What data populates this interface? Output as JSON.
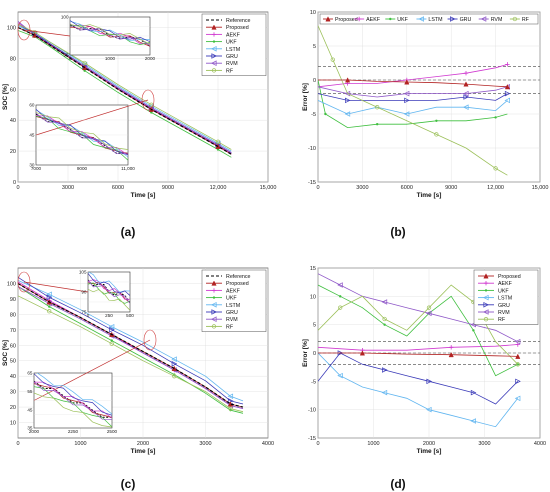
{
  "colors": {
    "Reference": "#000000",
    "Proposed": "#b22222",
    "AEKF": "#d03ad0",
    "UKF": "#3fbf3f",
    "LSTM": "#62b6f0",
    "GRU": "#3a3ab8",
    "RVM": "#8f58c8",
    "RF": "#9cc05a"
  },
  "chart_data": [
    {
      "panel": "a",
      "label": "(a)",
      "type": "line",
      "xlabel": "Time [s]",
      "ylabel": "SOC [%]",
      "xlim": [
        0,
        15000
      ],
      "ylim": [
        0,
        110
      ],
      "xticks": [
        0,
        3000,
        6000,
        9000,
        12000,
        15000
      ],
      "xticklabels": [
        "0",
        "3000",
        "6000",
        "9000",
        "12,000",
        "15,000"
      ],
      "yticks": [
        0,
        20,
        40,
        60,
        80,
        100
      ],
      "yticklabels": [
        "0",
        "20",
        "40",
        "60",
        "80",
        "100"
      ],
      "grid": true,
      "legend_position": "top-right",
      "legend": [
        "Reference",
        "Proposed",
        "AEKF",
        "UKF",
        "LSTM",
        "GRU",
        "RVM",
        "RF"
      ],
      "series": [
        {
          "name": "Reference",
          "x": [
            0,
            1000,
            2000,
            4000,
            6000,
            8000,
            10000,
            12000,
            12800
          ],
          "y": [
            100,
            95,
            88,
            74,
            60,
            47,
            35,
            23,
            18
          ]
        },
        {
          "name": "Proposed",
          "x": [
            0,
            1000,
            2000,
            4000,
            6000,
            8000,
            10000,
            12000,
            12800
          ],
          "y": [
            100,
            95,
            88,
            74,
            60,
            47,
            35,
            23,
            18
          ]
        },
        {
          "name": "AEKF",
          "x": [
            0,
            1000,
            2000,
            4000,
            6000,
            8000,
            10000,
            12000,
            12800
          ],
          "y": [
            103,
            95.5,
            88.5,
            74.5,
            60.5,
            47.5,
            35.5,
            23.5,
            18.5
          ]
        },
        {
          "name": "UKF",
          "x": [
            0,
            1000,
            2000,
            4000,
            6000,
            8000,
            10000,
            12000,
            12800
          ],
          "y": [
            98,
            94,
            87,
            72,
            58,
            45,
            33,
            21,
            16
          ]
        },
        {
          "name": "LSTM",
          "x": [
            0,
            1000,
            2000,
            4000,
            6000,
            8000,
            10000,
            12000,
            12800
          ],
          "y": [
            101,
            96,
            90,
            76,
            62,
            49,
            37,
            25,
            20
          ]
        },
        {
          "name": "GRU",
          "x": [
            0,
            1000,
            2000,
            4000,
            6000,
            8000,
            10000,
            12000,
            12800
          ],
          "y": [
            102,
            96,
            89,
            75,
            61,
            48,
            36,
            24,
            19
          ]
        },
        {
          "name": "RVM",
          "x": [
            0,
            1000,
            2000,
            4000,
            6000,
            8000,
            10000,
            12000,
            12800
          ],
          "y": [
            104,
            95,
            88,
            75,
            61,
            48,
            36,
            24,
            19
          ]
        },
        {
          "name": "RF",
          "x": [
            0,
            1000,
            2000,
            4000,
            6000,
            8000,
            10000,
            12000,
            12800
          ],
          "y": [
            102,
            97,
            90,
            77,
            63,
            50,
            38,
            26,
            21
          ]
        }
      ],
      "insets": [
        {
          "xticklabels": [
            "0",
            "1000",
            "2000"
          ],
          "yticklabels": [
            "95",
            "100"
          ]
        },
        {
          "xticklabels": [
            "7000",
            "9000",
            "11,000"
          ],
          "yticklabels": [
            "30",
            "45",
            "60"
          ]
        }
      ]
    },
    {
      "panel": "b",
      "label": "(b)",
      "type": "line",
      "xlabel": "Time [s]",
      "ylabel": "Error [%]",
      "xlim": [
        0,
        15000
      ],
      "ylim": [
        -15,
        10
      ],
      "xticks": [
        0,
        3000,
        6000,
        9000,
        12000,
        15000
      ],
      "xticklabels": [
        "0",
        "3000",
        "6000",
        "9000",
        "12,000",
        "15,000"
      ],
      "yticks": [
        10,
        5,
        0,
        -5,
        -10,
        -15
      ],
      "yticklabels": [
        "10",
        "5",
        "0",
        "-5",
        "-10",
        "-15"
      ],
      "grid": true,
      "legend_position": "top",
      "legend": [
        "Proposed",
        "AEKF",
        "UKF",
        "LSTM",
        "GRU",
        "RVM",
        "RF"
      ],
      "reference_lines": [
        2,
        0,
        -2
      ],
      "series": [
        {
          "name": "Proposed",
          "x": [
            0,
            2000,
            4000,
            6000,
            8000,
            10000,
            12000,
            12800
          ],
          "y": [
            0,
            0,
            -0.2,
            -0.3,
            -0.4,
            -0.6,
            -0.9,
            -1.0
          ]
        },
        {
          "name": "AEKF",
          "x": [
            0,
            2000,
            4000,
            6000,
            8000,
            10000,
            12000,
            12800
          ],
          "y": [
            -1,
            -0.5,
            -0.5,
            0,
            0.5,
            1,
            1.8,
            2.3
          ]
        },
        {
          "name": "UKF",
          "x": [
            0,
            500,
            2000,
            4000,
            6000,
            8000,
            10000,
            12000,
            12800
          ],
          "y": [
            0,
            -5,
            -7,
            -6.5,
            -6.5,
            -6,
            -6,
            -5.5,
            -5
          ]
        },
        {
          "name": "LSTM",
          "x": [
            0,
            2000,
            4000,
            6000,
            8000,
            10000,
            12000,
            12800
          ],
          "y": [
            -3,
            -5,
            -4,
            -5,
            -4,
            -4,
            -4.5,
            -3
          ]
        },
        {
          "name": "GRU",
          "x": [
            0,
            2000,
            4000,
            6000,
            8000,
            10000,
            12000,
            12800
          ],
          "y": [
            -2,
            -3,
            -3,
            -3,
            -3,
            -2.5,
            -3,
            -2
          ]
        },
        {
          "name": "RVM",
          "x": [
            0,
            2000,
            4000,
            6000,
            8000,
            10000,
            12000,
            12800
          ],
          "y": [
            -1,
            -2,
            -2.5,
            -2,
            -2,
            -2,
            -1.5,
            -1
          ]
        },
        {
          "name": "RF",
          "x": [
            0,
            1000,
            2000,
            4000,
            6000,
            8000,
            10000,
            12000,
            12800
          ],
          "y": [
            8,
            3,
            -2,
            -4,
            -6,
            -8,
            -10,
            -13,
            -14
          ]
        }
      ]
    },
    {
      "panel": "c",
      "label": "(c)",
      "type": "line",
      "xlabel": "Time [s]",
      "ylabel": "SOC [%]",
      "xlim": [
        0,
        4000
      ],
      "ylim": [
        0,
        110
      ],
      "xticks": [
        0,
        1000,
        2000,
        3000,
        4000
      ],
      "xticklabels": [
        "0",
        "1000",
        "2000",
        "3000",
        "4000"
      ],
      "yticks": [
        10,
        20,
        30,
        40,
        50,
        60,
        70,
        80,
        90,
        100
      ],
      "yticklabels": [
        "10",
        "20",
        "30",
        "40",
        "50",
        "60",
        "70",
        "80",
        "90",
        "100"
      ],
      "grid": true,
      "legend_position": "top-right",
      "legend": [
        "Reference",
        "Proposed",
        "AEKF",
        "UKF",
        "LSTM",
        "GRU",
        "RVM",
        "RF"
      ],
      "series": [
        {
          "name": "Reference",
          "x": [
            0,
            500,
            1000,
            1500,
            2000,
            2500,
            3000,
            3400,
            3600
          ],
          "y": [
            100,
            88,
            78,
            67,
            56,
            45,
            33,
            22,
            20
          ]
        },
        {
          "name": "Proposed",
          "x": [
            0,
            500,
            1000,
            1500,
            2000,
            2500,
            3000,
            3400,
            3600
          ],
          "y": [
            100,
            88,
            78,
            67,
            56,
            45,
            33,
            22,
            20
          ]
        },
        {
          "name": "AEKF",
          "x": [
            0,
            500,
            1000,
            1500,
            2000,
            2500,
            3000,
            3400,
            3600
          ],
          "y": [
            101,
            89,
            78,
            67,
            55,
            44,
            32,
            21,
            19
          ]
        },
        {
          "name": "UKF",
          "x": [
            0,
            500,
            1000,
            1500,
            2000,
            2500,
            3000,
            3400,
            3600
          ],
          "y": [
            98,
            85,
            74,
            63,
            52,
            41,
            29,
            18,
            16
          ]
        },
        {
          "name": "LSTM",
          "x": [
            0,
            500,
            1000,
            1500,
            2000,
            2500,
            3000,
            3400,
            3600
          ],
          "y": [
            102,
            93,
            83,
            72,
            62,
            51,
            40,
            27,
            24
          ]
        },
        {
          "name": "GRU",
          "x": [
            0,
            500,
            1000,
            1500,
            2000,
            2500,
            3000,
            3400,
            3600
          ],
          "y": [
            104,
            91,
            81,
            70,
            60,
            48,
            37,
            24,
            22
          ]
        },
        {
          "name": "RVM",
          "x": [
            0,
            500,
            1000,
            1500,
            2000,
            2500,
            3000,
            3400,
            3600
          ],
          "y": [
            98,
            87,
            77,
            66,
            55,
            44,
            32,
            21,
            19
          ]
        },
        {
          "name": "RF",
          "x": [
            0,
            500,
            1000,
            1500,
            2000,
            2500,
            3000,
            3400,
            3600
          ],
          "y": [
            92,
            82,
            72,
            61,
            50,
            40,
            30,
            19,
            17
          ]
        }
      ],
      "insets": [
        {
          "xticklabels": [
            "0",
            "250",
            "500"
          ],
          "yticklabels": [
            "75",
            "90",
            "105"
          ]
        },
        {
          "xticklabels": [
            "2000",
            "2250",
            "2500"
          ],
          "yticklabels": [
            "35",
            "45",
            "55",
            "65"
          ]
        }
      ]
    },
    {
      "panel": "d",
      "label": "(d)",
      "type": "line",
      "xlabel": "Time [s]",
      "ylabel": "Error [%]",
      "xlim": [
        0,
        4000
      ],
      "ylim": [
        -15,
        15
      ],
      "xticks": [
        0,
        1000,
        2000,
        3000,
        4000
      ],
      "xticklabels": [
        "0",
        "1000",
        "2000",
        "3000",
        "4000"
      ],
      "yticks": [
        15,
        10,
        5,
        0,
        -5,
        -10,
        -15
      ],
      "yticklabels": [
        "15",
        "10",
        "5",
        "0",
        "-5",
        "-10",
        "-15"
      ],
      "grid": true,
      "legend_position": "top-right",
      "legend": [
        "Proposed",
        "AEKF",
        "UKF",
        "LSTM",
        "GRU",
        "RVM",
        "RF"
      ],
      "reference_lines": [
        2,
        0,
        -2
      ],
      "series": [
        {
          "name": "Proposed",
          "x": [
            0,
            800,
            1600,
            2400,
            3200,
            3600
          ],
          "y": [
            0,
            0,
            -0.2,
            -0.3,
            -0.5,
            -0.6
          ]
        },
        {
          "name": "AEKF",
          "x": [
            0,
            800,
            1600,
            2400,
            3200,
            3600
          ],
          "y": [
            1,
            0.5,
            0.5,
            1,
            1.2,
            1.5
          ]
        },
        {
          "name": "UKF",
          "x": [
            0,
            400,
            800,
            1200,
            1600,
            2000,
            2400,
            2800,
            3200,
            3600
          ],
          "y": [
            12,
            10,
            8,
            5,
            3,
            7,
            10,
            4,
            -4,
            -2
          ]
        },
        {
          "name": "LSTM",
          "x": [
            0,
            400,
            800,
            1200,
            1600,
            2000,
            2400,
            2800,
            3200,
            3600
          ],
          "y": [
            0,
            -4,
            -6,
            -7,
            -8,
            -10,
            -11,
            -12,
            -13,
            -8
          ]
        },
        {
          "name": "GRU",
          "x": [
            0,
            400,
            800,
            1200,
            1600,
            2000,
            2400,
            2800,
            3200,
            3600
          ],
          "y": [
            -5,
            0,
            -2,
            -3,
            -4,
            -5,
            -6,
            -7,
            -9,
            -5
          ]
        },
        {
          "name": "RVM",
          "x": [
            0,
            400,
            800,
            1200,
            1600,
            2000,
            2400,
            2800,
            3200,
            3600
          ],
          "y": [
            14,
            12,
            10,
            9,
            8,
            7,
            6,
            5,
            4,
            2
          ]
        },
        {
          "name": "RF",
          "x": [
            0,
            400,
            800,
            1200,
            1600,
            2000,
            2400,
            2800,
            3200,
            3600
          ],
          "y": [
            4,
            8,
            10,
            6,
            4,
            8,
            12,
            9,
            2,
            -2
          ]
        }
      ]
    }
  ]
}
